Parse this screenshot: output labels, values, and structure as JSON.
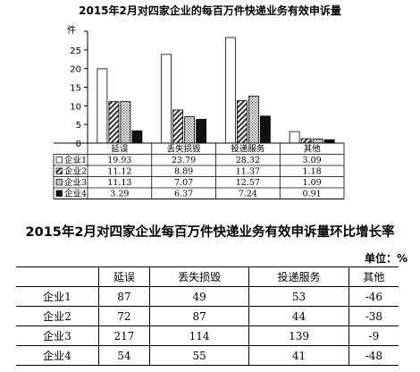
{
  "chart_data": [
    {
      "type": "bar",
      "title": "2015年2月对四家企业的每百万件快递业务有效申诉量",
      "ylabel": "件",
      "ylim": [
        0,
        30
      ],
      "yticks": [
        0,
        5,
        10,
        15,
        20,
        25,
        30
      ],
      "grid": false,
      "categories": [
        "延误",
        "丢失损毁",
        "投递服务",
        "其他"
      ],
      "series": [
        {
          "name": "企业1",
          "values": [
            19.93,
            23.79,
            28.32,
            3.09
          ],
          "pattern": "open"
        },
        {
          "name": "企业2",
          "values": [
            11.12,
            8.89,
            11.37,
            1.18
          ],
          "pattern": "hatch"
        },
        {
          "name": "企业3",
          "values": [
            11.13,
            7.07,
            12.57,
            1.09
          ],
          "pattern": "dots"
        },
        {
          "name": "企业4",
          "values": [
            3.29,
            6.37,
            7.24,
            0.91
          ],
          "pattern": "solid"
        }
      ],
      "data_table": {
        "rows": [
          {
            "label": "企业1",
            "values": [
              "19.93",
              "23.79",
              "28.32",
              "3.09"
            ]
          },
          {
            "label": "企业2",
            "values": [
              "11.12",
              "8.89",
              "11.37",
              "1.18"
            ]
          },
          {
            "label": "企业3",
            "values": [
              "11.13",
              "7.07",
              "12.57",
              "1.09"
            ]
          },
          {
            "label": "企业4",
            "values": [
              "3.29",
              "6.37",
              "7.24",
              "0.91"
            ]
          }
        ]
      }
    },
    {
      "type": "table",
      "title": "2015年2月对四家企业每百万件快递业务有效申诉量环比增长率",
      "unit": "单位：%",
      "columns": [
        "",
        "延误",
        "丢失损毁",
        "投递服务",
        "其他"
      ],
      "rows": [
        {
          "label": "企业1",
          "values": [
            "87",
            "49",
            "53",
            "-46"
          ]
        },
        {
          "label": "企业2",
          "values": [
            "72",
            "87",
            "44",
            "-38"
          ]
        },
        {
          "label": "企业3",
          "values": [
            "217",
            "114",
            "139",
            "-9"
          ]
        },
        {
          "label": "企业4",
          "values": [
            "54",
            "55",
            "41",
            "-48"
          ]
        }
      ]
    }
  ]
}
